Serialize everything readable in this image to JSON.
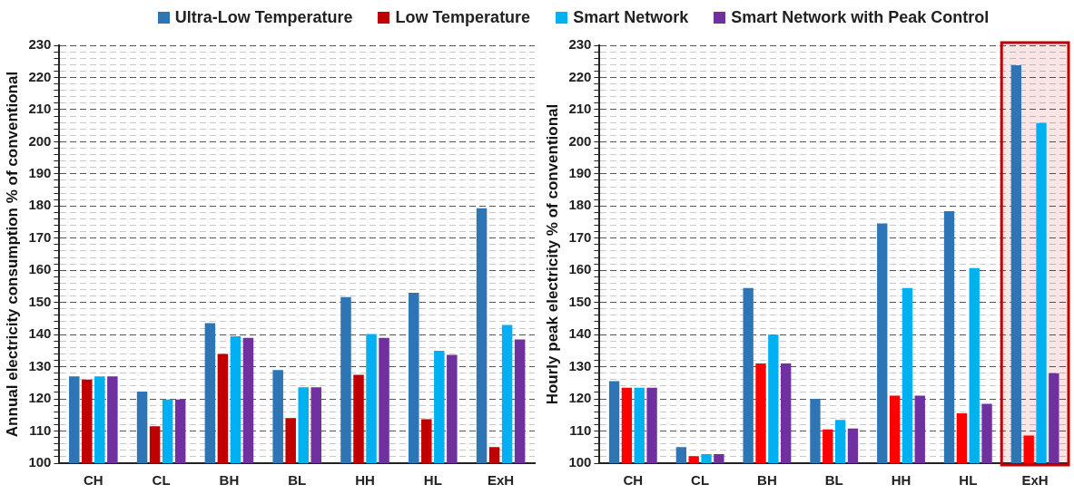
{
  "chart_data": [
    {
      "type": "bar",
      "ylabel": "Annual electricity consumption % of conventional",
      "categories": [
        "CH",
        "CL",
        "BH",
        "BL",
        "HH",
        "HL",
        "ExH"
      ],
      "legend": "top",
      "grid": "y",
      "ylim": [
        100,
        230
      ],
      "yticks": [
        100,
        {
          "value": 102,
          "label": null
        },
        {
          "value": 104,
          "label": null
        },
        {
          "value": 106,
          "label": null
        },
        {
          "value": 108,
          "label": null
        },
        110,
        {
          "value": 112,
          "label": null
        },
        {
          "value": 114,
          "label": null
        },
        {
          "value": 116,
          "label": null
        },
        {
          "value": 118,
          "label": null
        },
        120,
        {
          "value": 122,
          "label": null
        },
        {
          "value": 124,
          "label": null
        },
        {
          "value": 126,
          "label": null
        },
        {
          "value": 128,
          "label": null
        },
        130,
        {
          "value": 132,
          "label": null
        },
        {
          "value": 134,
          "label": null
        },
        {
          "value": 136,
          "label": null
        },
        {
          "value": 138,
          "label": null
        },
        140,
        {
          "value": 142,
          "label": null
        },
        {
          "value": 144,
          "label": null
        },
        {
          "value": 146,
          "label": null
        },
        {
          "value": 148,
          "label": null
        },
        150,
        {
          "value": 152,
          "label": null
        },
        {
          "value": 154,
          "label": null
        },
        {
          "value": 156,
          "label": null
        },
        {
          "value": 158,
          "label": null
        },
        160,
        {
          "value": 162,
          "label": null
        },
        {
          "value": 164,
          "label": null
        },
        {
          "value": 166,
          "label": null
        },
        {
          "value": 168,
          "label": null
        },
        170,
        {
          "value": 172,
          "label": null
        },
        {
          "value": 174,
          "label": null
        },
        {
          "value": 176,
          "label": null
        },
        {
          "value": 178,
          "label": null
        },
        180,
        {
          "value": 182,
          "label": null
        },
        {
          "value": 184,
          "label": null
        },
        {
          "value": 186,
          "label": null
        },
        {
          "value": 188,
          "label": null
        },
        190,
        {
          "value": 192,
          "label": null
        },
        {
          "value": 194,
          "label": null
        },
        {
          "value": 196,
          "label": null
        },
        {
          "value": 198,
          "label": null
        },
        200,
        {
          "value": 202,
          "label": null
        },
        {
          "value": 204,
          "label": null
        },
        {
          "value": 206,
          "label": null
        },
        {
          "value": 208,
          "label": null
        },
        210,
        {
          "value": 212,
          "label": null
        },
        {
          "value": 214,
          "label": null
        },
        {
          "value": 216,
          "label": null
        },
        {
          "value": 218,
          "label": null
        },
        220,
        {
          "value": 222,
          "label": null
        },
        {
          "value": 224,
          "label": null
        },
        {
          "value": 226,
          "label": null
        },
        {
          "value": 228,
          "label": null
        },
        230
      ],
      "series": [
        {
          "name": "Ultra-Low Temperature",
          "color": "#2e75b6",
          "values": [
            127,
            122.3,
            143.6,
            129,
            151.7,
            153,
            179.3
          ]
        },
        {
          "name": "Low Temperature",
          "color": "#c00000",
          "values": [
            126,
            111.5,
            134,
            114,
            127.5,
            113.7,
            105
          ]
        },
        {
          "name": "Smart Network",
          "color": "#00b0f0",
          "values": [
            127,
            119.8,
            139.5,
            123.6,
            140.2,
            135,
            143
          ]
        },
        {
          "name": "Smart Network with Peak Control",
          "color": "#7030a0",
          "values": [
            127,
            119.8,
            139,
            123.6,
            139,
            133.7,
            138.5
          ]
        }
      ]
    },
    {
      "type": "bar",
      "ylabel": "Hourly peak electricity % of conventional",
      "categories": [
        "CH",
        "CL",
        "BH",
        "BL",
        "HH",
        "HL",
        "ExH"
      ],
      "grid": "y",
      "ylim": [
        100,
        230
      ],
      "yticks": [
        100,
        {
          "value": 102,
          "label": null
        },
        {
          "value": 104,
          "label": null
        },
        {
          "value": 106,
          "label": null
        },
        {
          "value": 108,
          "label": null
        },
        110,
        {
          "value": 112,
          "label": null
        },
        {
          "value": 114,
          "label": null
        },
        {
          "value": 116,
          "label": null
        },
        {
          "value": 118,
          "label": null
        },
        120,
        {
          "value": 122,
          "label": null
        },
        {
          "value": 124,
          "label": null
        },
        {
          "value": 126,
          "label": null
        },
        {
          "value": 128,
          "label": null
        },
        130,
        {
          "value": 132,
          "label": null
        },
        {
          "value": 134,
          "label": null
        },
        {
          "value": 136,
          "label": null
        },
        {
          "value": 138,
          "label": null
        },
        140,
        {
          "value": 142,
          "label": null
        },
        {
          "value": 144,
          "label": null
        },
        {
          "value": 146,
          "label": null
        },
        {
          "value": 148,
          "label": null
        },
        150,
        {
          "value": 152,
          "label": null
        },
        {
          "value": 154,
          "label": null
        },
        {
          "value": 156,
          "label": null
        },
        {
          "value": 158,
          "label": null
        },
        160,
        {
          "value": 162,
          "label": null
        },
        {
          "value": 164,
          "label": null
        },
        {
          "value": 166,
          "label": null
        },
        {
          "value": 168,
          "label": null
        },
        170,
        {
          "value": 172,
          "label": null
        },
        {
          "value": 174,
          "label": null
        },
        {
          "value": 176,
          "label": null
        },
        {
          "value": 178,
          "label": null
        },
        180,
        {
          "value": 182,
          "label": null
        },
        {
          "value": 184,
          "label": null
        },
        {
          "value": 186,
          "label": null
        },
        {
          "value": 188,
          "label": null
        },
        190,
        {
          "value": 192,
          "label": null
        },
        {
          "value": 194,
          "label": null
        },
        {
          "value": 196,
          "label": null
        },
        {
          "value": 198,
          "label": null
        },
        200,
        {
          "value": 202,
          "label": null
        },
        {
          "value": 204,
          "label": null
        },
        {
          "value": 206,
          "label": null
        },
        {
          "value": 208,
          "label": null
        },
        210,
        {
          "value": 212,
          "label": null
        },
        {
          "value": 214,
          "label": null
        },
        {
          "value": 216,
          "label": null
        },
        {
          "value": 218,
          "label": null
        },
        220,
        {
          "value": 222,
          "label": null
        },
        {
          "value": 224,
          "label": null
        },
        {
          "value": 226,
          "label": null
        },
        {
          "value": 228,
          "label": null
        },
        230
      ],
      "bands": [
        {
          "axis": "x",
          "from": "ExH",
          "to": "ExH",
          "color": "#c00000"
        }
      ],
      "series": [
        {
          "color": "#2e75b6",
          "values": [
            125.5,
            105,
            154.5,
            120,
            174.6,
            178.4,
            223.8
          ]
        },
        {
          "color": "#ff0000",
          "values": [
            123.5,
            102.2,
            131,
            110.5,
            121,
            115.5,
            108.6
          ]
        },
        {
          "color": "#00b0f0",
          "values": [
            123.5,
            102.8,
            140,
            113.5,
            154.5,
            160.7,
            205.8
          ]
        },
        {
          "color": "#7030a0",
          "values": [
            123.5,
            102.8,
            131,
            110.8,
            121,
            118.5,
            128
          ]
        }
      ]
    }
  ]
}
